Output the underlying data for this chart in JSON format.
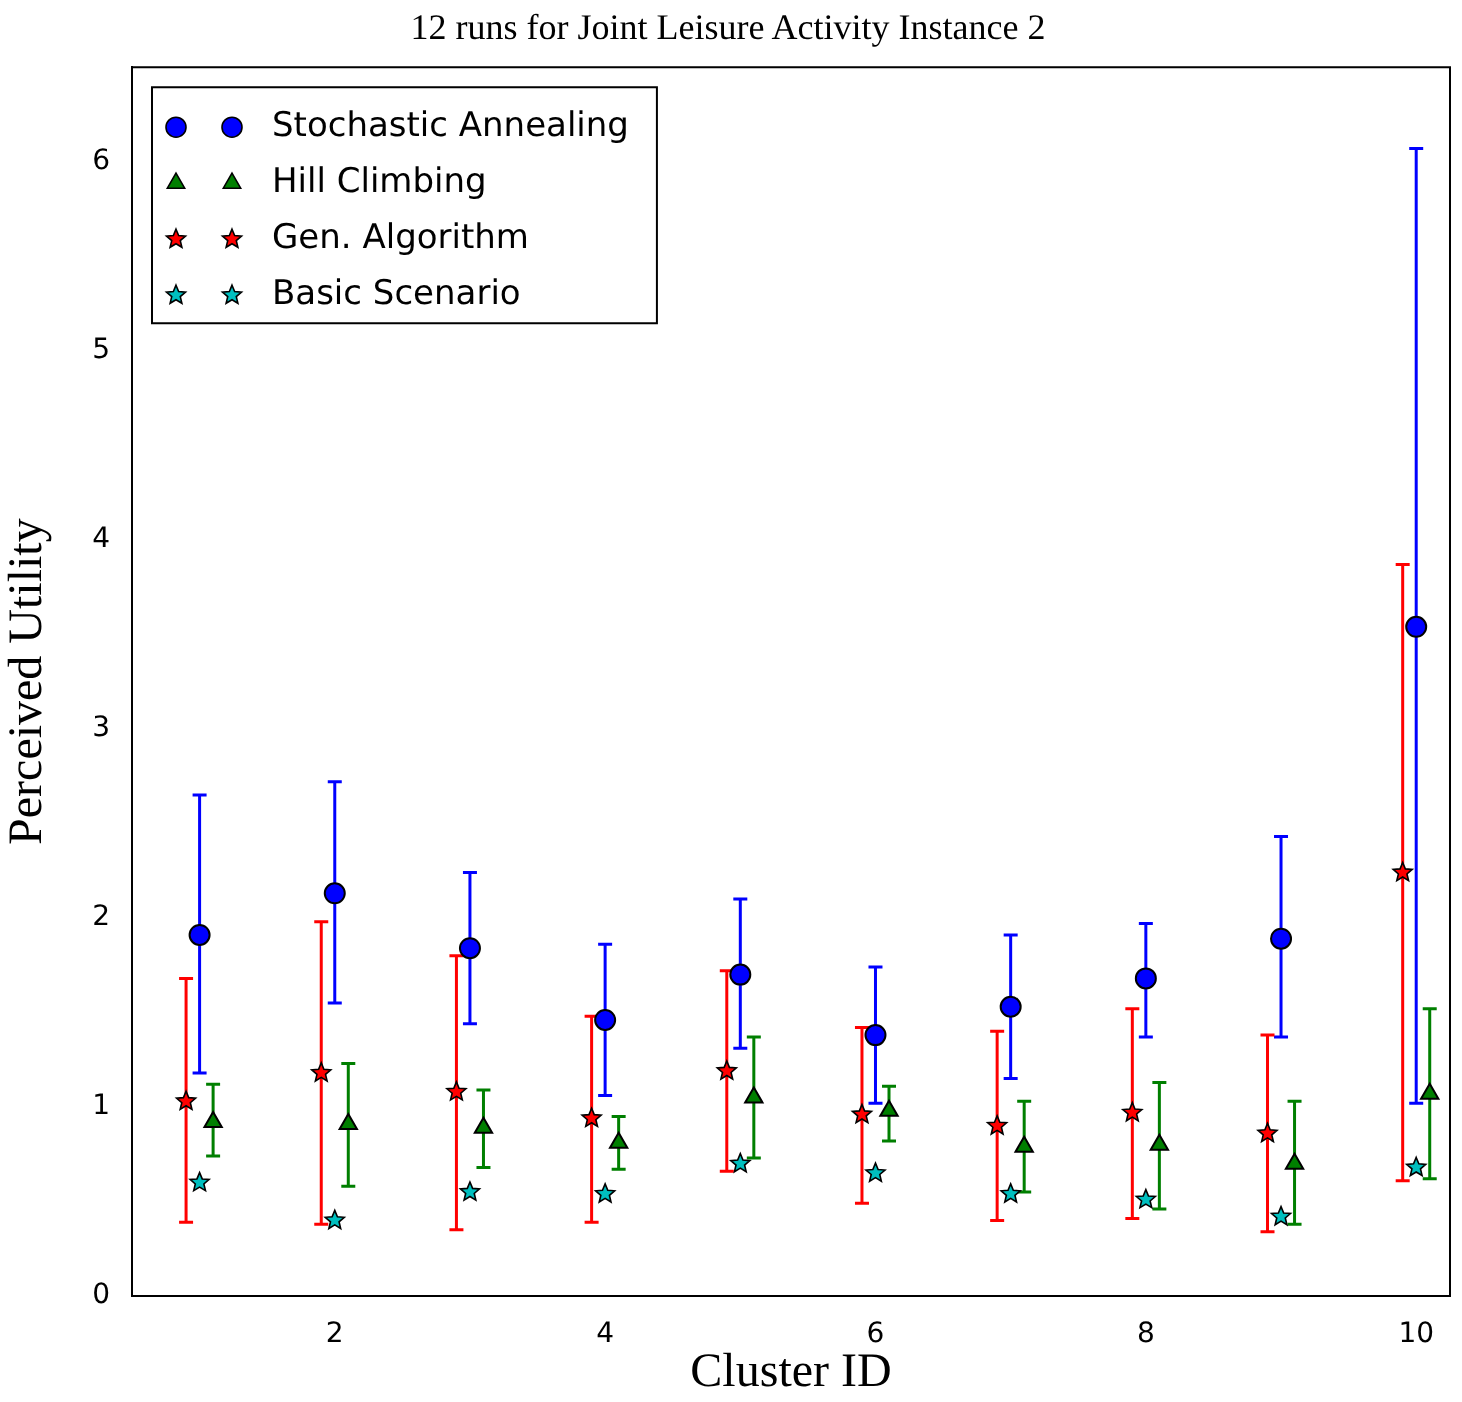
{
  "chart_data": {
    "type": "scatter",
    "title": "12 runs for Joint Leisure Activity Instance 2",
    "xlabel": "Cluster ID",
    "ylabel": "Perceived Utility",
    "xlim": [
      0.5,
      10.25
    ],
    "xticks": [
      2,
      4,
      6,
      8,
      10
    ],
    "ylim": [
      0,
      6.5
    ],
    "yticks": [
      0,
      1,
      2,
      3,
      4,
      5,
      6
    ],
    "legend": "top left",
    "series": [
      {
        "name": "Stochastic Annealing",
        "color": "#0000ff",
        "marker": "circle",
        "x": [
          1,
          2,
          3,
          4,
          5,
          6,
          7,
          8,
          9,
          10
        ],
        "values": [
          1.91,
          2.13,
          1.84,
          1.46,
          1.7,
          1.38,
          1.53,
          1.68,
          1.89,
          3.54
        ],
        "errors": [
          [
            1.18,
            2.65
          ],
          [
            1.55,
            2.72
          ],
          [
            1.44,
            2.24
          ],
          [
            1.06,
            1.86
          ],
          [
            1.31,
            2.1
          ],
          [
            1.02,
            1.74
          ],
          [
            1.15,
            1.91
          ],
          [
            1.37,
            1.97
          ],
          [
            1.37,
            2.43
          ],
          [
            1.02,
            6.07
          ]
        ]
      },
      {
        "name": "Hill Climbing",
        "color": "#007f00",
        "marker": "triangle",
        "x": [
          1.1,
          2.1,
          3.1,
          4.1,
          5.1,
          6.1,
          7.1,
          8.1,
          9.1,
          10.1
        ],
        "values": [
          0.92,
          0.91,
          0.89,
          0.81,
          1.05,
          0.98,
          0.79,
          0.8,
          0.7,
          1.07
        ],
        "errors": [
          [
            0.74,
            1.12
          ],
          [
            0.58,
            1.23
          ],
          [
            0.68,
            1.09
          ],
          [
            0.67,
            0.95
          ],
          [
            0.73,
            1.37
          ],
          [
            0.82,
            1.11
          ],
          [
            0.55,
            1.03
          ],
          [
            0.46,
            1.13
          ],
          [
            0.38,
            1.03
          ],
          [
            0.62,
            1.52
          ]
        ]
      },
      {
        "name": "Gen. Algorithm",
        "color": "#ff0000",
        "marker": "star",
        "x": [
          0.9,
          1.9,
          2.9,
          3.9,
          4.9,
          5.9,
          6.9,
          7.9,
          8.9,
          9.9
        ],
        "values": [
          1.03,
          1.18,
          1.08,
          0.94,
          1.19,
          0.96,
          0.9,
          0.97,
          0.86,
          2.24
        ],
        "errors": [
          [
            0.39,
            1.68
          ],
          [
            0.38,
            1.98
          ],
          [
            0.35,
            1.8
          ],
          [
            0.39,
            1.48
          ],
          [
            0.66,
            1.72
          ],
          [
            0.49,
            1.42
          ],
          [
            0.4,
            1.4
          ],
          [
            0.41,
            1.52
          ],
          [
            0.34,
            1.38
          ],
          [
            0.61,
            3.87
          ]
        ]
      },
      {
        "name": "Basic Scenario",
        "color": "#00bfbf",
        "marker": "star",
        "x": [
          1,
          2,
          3,
          4,
          5,
          6,
          7,
          8,
          9,
          10
        ],
        "values": [
          0.6,
          0.4,
          0.55,
          0.54,
          0.7,
          0.65,
          0.54,
          0.51,
          0.42,
          0.68
        ]
      }
    ]
  }
}
